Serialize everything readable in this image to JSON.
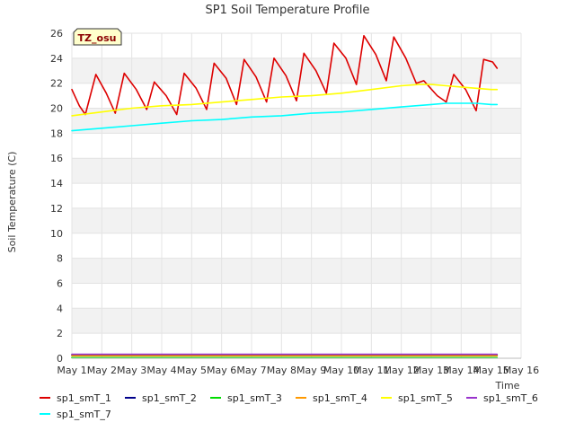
{
  "chart_data": {
    "type": "line",
    "title": "SP1 Soil Temperature Profile",
    "xlabel": "Time",
    "ylabel": "Soil Temperature (C)",
    "station_badge": "TZ_osu",
    "xlim": [
      1,
      16
    ],
    "ylim": [
      0,
      26
    ],
    "x_ticks": [
      {
        "value": 1,
        "label": "May 1"
      },
      {
        "value": 2,
        "label": "May 2"
      },
      {
        "value": 3,
        "label": "May 3"
      },
      {
        "value": 4,
        "label": "May 4"
      },
      {
        "value": 5,
        "label": "May 5"
      },
      {
        "value": 6,
        "label": "May 6"
      },
      {
        "value": 7,
        "label": "May 7"
      },
      {
        "value": 8,
        "label": "May 8"
      },
      {
        "value": 9,
        "label": "May 9"
      },
      {
        "value": 10,
        "label": "May 10"
      },
      {
        "value": 11,
        "label": "May 11"
      },
      {
        "value": 12,
        "label": "May 12"
      },
      {
        "value": 13,
        "label": "May 13"
      },
      {
        "value": 14,
        "label": "May 14"
      },
      {
        "value": 15,
        "label": "May 15"
      },
      {
        "value": 16,
        "label": "May 16"
      }
    ],
    "y_ticks": [
      0,
      2,
      4,
      6,
      8,
      10,
      12,
      14,
      16,
      18,
      20,
      22,
      24,
      26
    ],
    "grid": "horizontal bands",
    "legend_position": "bottom",
    "series": [
      {
        "name": "sp1_smT_1",
        "color": "#dd0000",
        "x": [
          1.0,
          1.25,
          1.45,
          1.8,
          2.15,
          2.45,
          2.75,
          3.15,
          3.5,
          3.75,
          4.15,
          4.5,
          4.75,
          5.15,
          5.5,
          5.75,
          6.15,
          6.5,
          6.75,
          7.15,
          7.5,
          7.75,
          8.15,
          8.5,
          8.75,
          9.15,
          9.5,
          9.75,
          10.15,
          10.5,
          10.75,
          11.15,
          11.5,
          11.75,
          12.15,
          12.5,
          12.75,
          13.2,
          13.5,
          13.75,
          14.15,
          14.5,
          14.75,
          15.05,
          15.2
        ],
        "y": [
          21.5,
          20.2,
          19.5,
          22.7,
          21.2,
          19.6,
          22.8,
          21.5,
          19.9,
          22.1,
          21.0,
          19.5,
          22.8,
          21.6,
          19.9,
          23.6,
          22.4,
          20.3,
          23.9,
          22.5,
          20.5,
          24.0,
          22.6,
          20.6,
          24.4,
          23.0,
          21.2,
          25.2,
          24.0,
          21.9,
          25.8,
          24.3,
          22.2,
          25.7,
          24.0,
          22.0,
          22.2,
          21.0,
          20.5,
          22.7,
          21.5,
          19.8,
          23.9,
          23.7,
          23.2
        ]
      },
      {
        "name": "sp1_smT_2",
        "color": "#00008b",
        "x": [
          1.0,
          15.2
        ],
        "y": [
          0.28,
          0.28
        ]
      },
      {
        "name": "sp1_smT_3",
        "color": "#00dd00",
        "x": [
          1.0,
          15.2
        ],
        "y": [
          0.05,
          0.05
        ]
      },
      {
        "name": "sp1_smT_4",
        "color": "#ff9900",
        "x": [
          1.0,
          15.2
        ],
        "y": [
          0.2,
          0.2
        ]
      },
      {
        "name": "sp1_smT_5",
        "color": "#ffff00",
        "x": [
          1.0,
          2.0,
          3.0,
          4.0,
          5.0,
          6.0,
          7.0,
          8.0,
          9.0,
          10.0,
          11.0,
          12.0,
          12.6,
          13.0,
          13.5,
          14.0,
          14.5,
          15.0,
          15.2
        ],
        "y": [
          19.4,
          19.7,
          20.0,
          20.2,
          20.3,
          20.5,
          20.7,
          20.9,
          21.0,
          21.2,
          21.5,
          21.8,
          21.9,
          21.9,
          21.8,
          21.7,
          21.6,
          21.5,
          21.5
        ]
      },
      {
        "name": "sp1_smT_6",
        "color": "#9933cc",
        "x": [
          1.0,
          15.2
        ],
        "y": [
          0.32,
          0.32
        ]
      },
      {
        "name": "sp1_smT_7",
        "color": "#00ffff",
        "x": [
          1.0,
          2.0,
          3.0,
          4.0,
          5.0,
          6.0,
          7.0,
          8.0,
          9.0,
          10.0,
          11.0,
          12.0,
          13.0,
          13.5,
          14.0,
          14.5,
          15.0,
          15.2
        ],
        "y": [
          18.2,
          18.4,
          18.6,
          18.8,
          19.0,
          19.1,
          19.3,
          19.4,
          19.6,
          19.7,
          19.9,
          20.1,
          20.3,
          20.4,
          20.4,
          20.4,
          20.3,
          20.3
        ]
      }
    ]
  }
}
